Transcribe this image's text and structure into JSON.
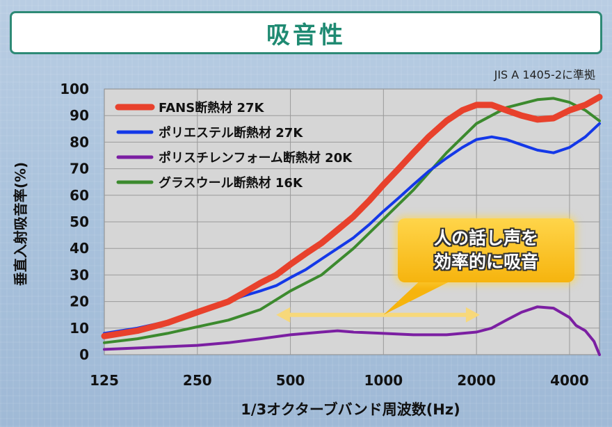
{
  "title": "吸音性",
  "standard_note": "JIS A 1405-2に準拠",
  "callout": {
    "line1": "人の話し声を",
    "line2": "効率的に吸音"
  },
  "colors": {
    "fans": "#e8412c",
    "polyester": "#1438e8",
    "polystyrene": "#7b1fa2",
    "glasswool": "#3c8a2e",
    "callout_arrow": "#f7d87a"
  },
  "chart_data": {
    "type": "line",
    "xscale": "log",
    "xlim": [
      125,
      5000
    ],
    "ylim": [
      0,
      100
    ],
    "yticks": [
      0,
      10,
      20,
      30,
      40,
      50,
      60,
      70,
      80,
      90,
      100
    ],
    "xticks": [
      125,
      250,
      500,
      1000,
      2000,
      4000
    ],
    "xtick_labels": [
      "125",
      "250",
      "500",
      "1000",
      "2000",
      "4000"
    ],
    "xlabel": "1/3オクターブバンド周波数(Hz)",
    "ylabel": "垂直入射吸音率(%)",
    "grid": true,
    "legend_position": "top-left",
    "annotation_arrow": {
      "from": 450,
      "to": 2050,
      "y": 15
    },
    "series": [
      {
        "name": "FANS断熱材 27K",
        "color_key": "fans",
        "x": [
          125,
          160,
          200,
          250,
          315,
          350,
          400,
          450,
          500,
          560,
          630,
          710,
          800,
          900,
          1000,
          1120,
          1250,
          1400,
          1600,
          1800,
          2000,
          2240,
          2500,
          2800,
          3150,
          3550,
          4000,
          4500,
          5000
        ],
        "y": [
          7,
          9,
          12,
          16,
          20,
          23,
          27,
          30,
          34,
          38,
          42,
          47,
          52,
          58,
          64,
          70,
          76,
          82,
          88,
          92,
          94,
          94,
          92,
          90,
          88.5,
          89,
          92,
          94,
          97
        ]
      },
      {
        "name": "ポリエステル断熱材 27K",
        "color_key": "polyester",
        "x": [
          125,
          160,
          200,
          250,
          315,
          350,
          400,
          450,
          500,
          560,
          630,
          710,
          800,
          900,
          1000,
          1120,
          1250,
          1400,
          1600,
          1800,
          2000,
          2240,
          2500,
          2800,
          3150,
          3550,
          4000,
          4500,
          5000
        ],
        "y": [
          8,
          10,
          12.5,
          16,
          20,
          22,
          24,
          26,
          29,
          32,
          36,
          40,
          44,
          49,
          54,
          59,
          64,
          69,
          74,
          78,
          81,
          82,
          81,
          79,
          77,
          76,
          78,
          82,
          87
        ]
      },
      {
        "name": "ポリスチレンフォーム断熱材 20K",
        "color_key": "polystyrene",
        "x": [
          125,
          160,
          200,
          250,
          315,
          400,
          500,
          630,
          710,
          800,
          1000,
          1250,
          1600,
          2000,
          2240,
          2500,
          2800,
          3150,
          3550,
          4000,
          4200,
          4500,
          4800,
          5000
        ],
        "y": [
          2,
          2.5,
          3,
          3.5,
          4.5,
          6,
          7.5,
          8.5,
          9,
          8.5,
          8,
          7.5,
          7.5,
          8.5,
          10,
          13,
          16,
          18,
          17.5,
          14,
          11,
          9,
          5,
          0
        ]
      },
      {
        "name": "グラスウール断熱材 16K",
        "color_key": "glasswool",
        "x": [
          125,
          160,
          200,
          250,
          315,
          400,
          500,
          630,
          800,
          1000,
          1250,
          1600,
          2000,
          2500,
          3150,
          3550,
          4000,
          4500,
          5000
        ],
        "y": [
          4.5,
          6,
          8,
          10.5,
          13,
          17,
          24,
          30,
          40,
          51,
          62,
          76,
          87,
          93,
          96,
          96.5,
          95,
          92,
          88
        ]
      }
    ]
  }
}
